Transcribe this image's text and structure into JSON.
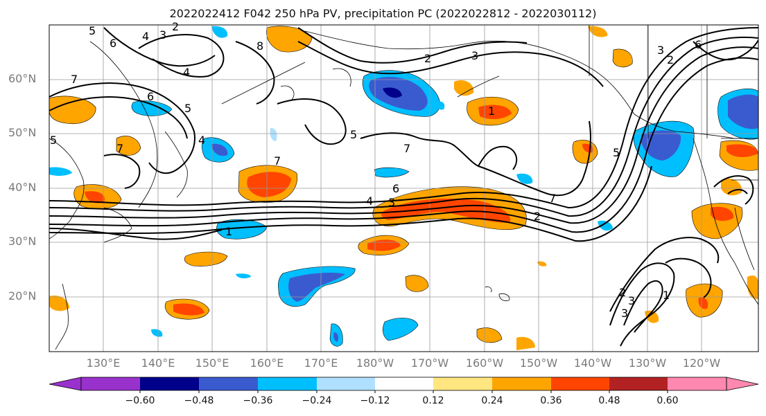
{
  "title": "2022022412 F042 250 hPa PV, precipitation PC (2022022812 - 2022030112)",
  "map": {
    "lat_labels": [
      "60°N",
      "50°N",
      "40°N",
      "30°N",
      "20°N"
    ],
    "lon_labels": [
      "130°E",
      "140°E",
      "150°E",
      "160°E",
      "170°E",
      "180°W",
      "170°W",
      "160°W",
      "150°W",
      "140°W",
      "130°W",
      "120°W"
    ],
    "contour_labels": [
      "5",
      "4",
      "3",
      "2",
      "6",
      "8",
      "7",
      "2",
      "3",
      "4",
      "5",
      "6",
      "5",
      "4",
      "7",
      "7",
      "5",
      "6",
      "7",
      "4",
      "3",
      "2",
      "1",
      "7",
      "5",
      "1",
      "3",
      "2",
      "1",
      "6",
      "3",
      "2",
      "3"
    ]
  },
  "colorbar": {
    "ticks": [
      "−0.60",
      "−0.48",
      "−0.36",
      "−0.24",
      "−0.12",
      "0.12",
      "0.24",
      "0.36",
      "0.48",
      "0.60"
    ],
    "colors": [
      "#9932cc",
      "#00008b",
      "#3a5bd0",
      "#00bfff",
      "#b0e0ff",
      "#ffffff",
      "#ffe680",
      "#ffa500",
      "#ff4500",
      "#b22222",
      "#ff88b0",
      "#ff88b0"
    ]
  }
}
